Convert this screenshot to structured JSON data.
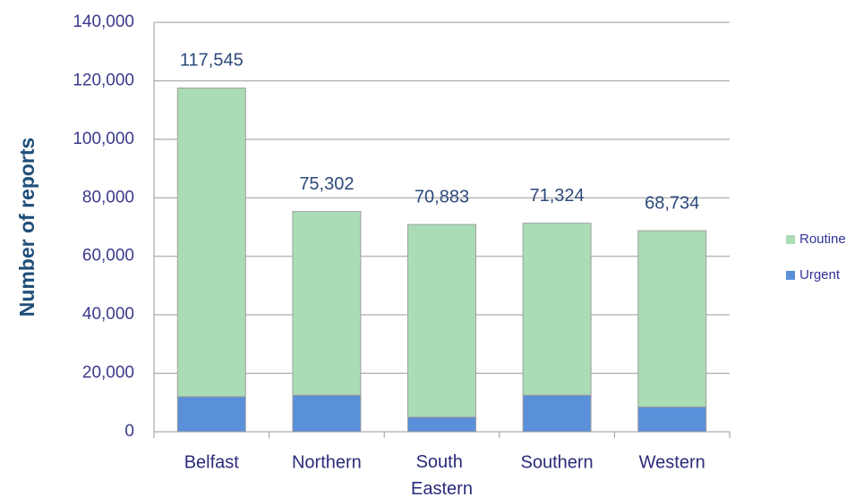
{
  "chart_data": {
    "type": "stacked_bar",
    "y_label": "Number of reports",
    "categories": [
      "Belfast",
      "Northern",
      "South Eastern",
      "Southern",
      "Western"
    ],
    "series": [
      {
        "name": "Urgent",
        "color": "#5a8fd9",
        "values": [
          12000,
          12500,
          5000,
          12500,
          8500
        ]
      },
      {
        "name": "Routine",
        "color": "#aadcb5",
        "values": [
          105545,
          62802,
          65883,
          58824,
          60234
        ]
      }
    ],
    "totals": [
      117545,
      75302,
      70883,
      71324,
      68734
    ],
    "total_labels": [
      "117,545",
      "75,302",
      "70,883",
      "71,324",
      "68,734"
    ],
    "ylim": [
      0,
      140000
    ],
    "yticks": [
      0,
      {
        "value": 20000,
        "label": "20,000"
      },
      {
        "value": 40000,
        "label": "40,000"
      },
      {
        "value": 60000,
        "label": "60,000"
      },
      {
        "value": 80000,
        "label": "80,000"
      },
      {
        "value": 100000,
        "label": "100,000"
      },
      {
        "value": 120000,
        "label": "120,000"
      },
      {
        "value": 140000,
        "label": "140,000"
      }
    ],
    "grid": true,
    "legend": "right"
  }
}
